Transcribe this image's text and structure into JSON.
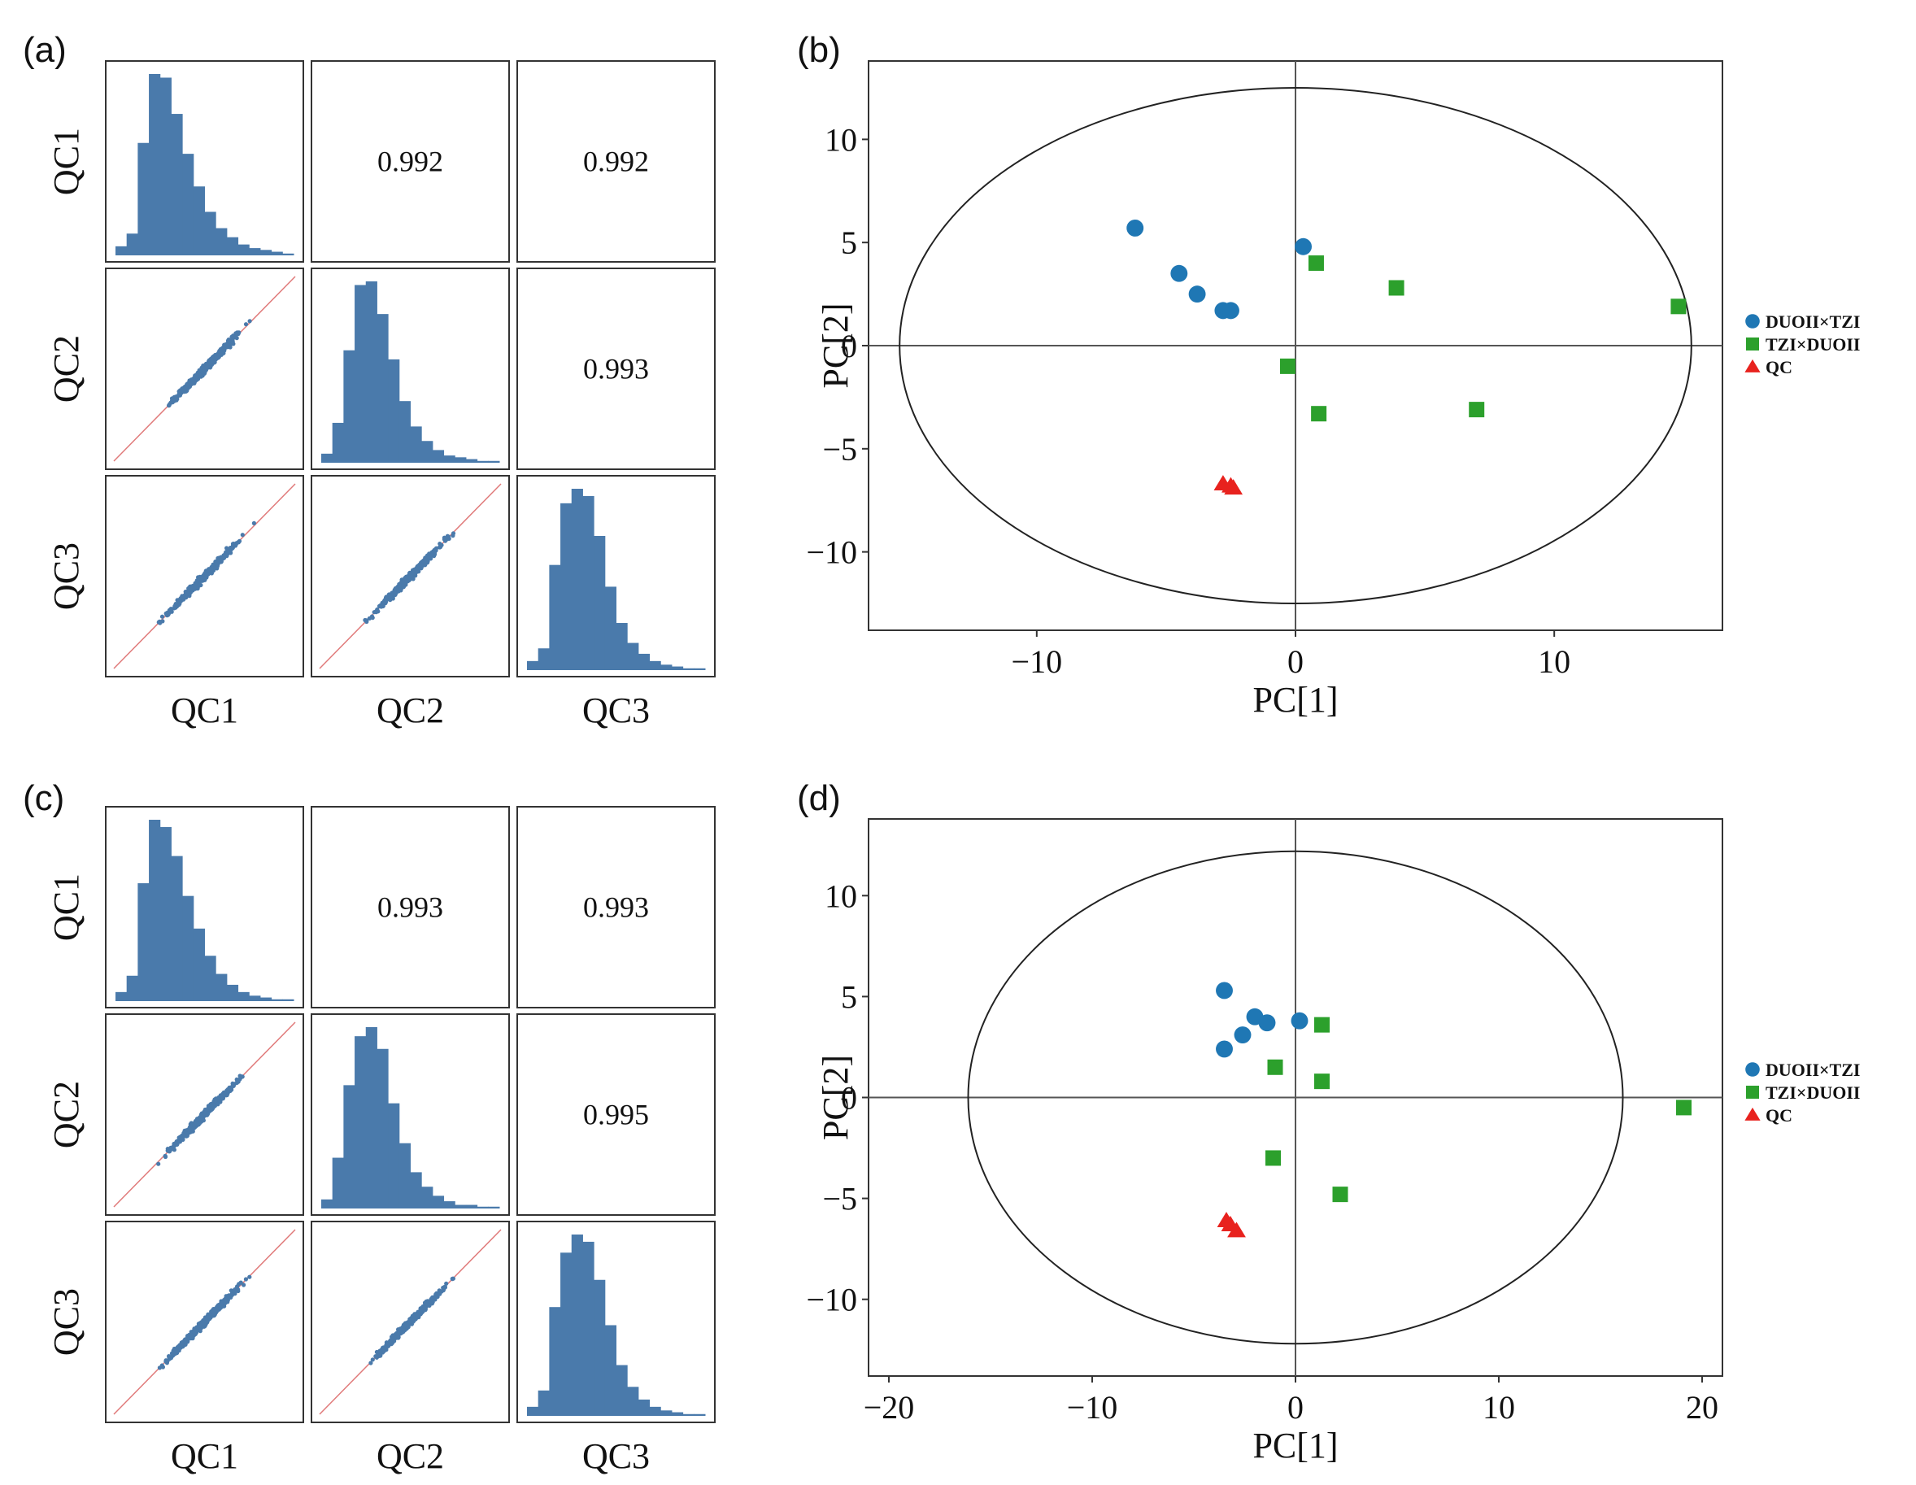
{
  "colors": {
    "hist": "#4a7aab",
    "scatter": "#4a7aab",
    "diag_line": "#e07a7a",
    "duo_tzi": "#1f77b4",
    "tzi_duo": "#2ca02c",
    "qc": "#e8221e",
    "frame": "#333333"
  },
  "chart_data": [
    {
      "id": "a",
      "panel_label": "(a)",
      "type": "pair-matrix",
      "variables": [
        "QC1",
        "QC2",
        "QC3"
      ],
      "correlations": {
        "QC1-QC2": "0.992",
        "QC1-QC3": "0.992",
        "QC2-QC3": "0.993"
      },
      "histograms": {
        "QC1": [
          0.05,
          0.12,
          0.62,
          1.0,
          0.98,
          0.78,
          0.56,
          0.38,
          0.24,
          0.15,
          0.1,
          0.06,
          0.04,
          0.03,
          0.02,
          0.01
        ],
        "QC2": [
          0.05,
          0.22,
          0.62,
          0.98,
          1.0,
          0.82,
          0.57,
          0.34,
          0.2,
          0.12,
          0.07,
          0.04,
          0.03,
          0.02,
          0.01,
          0.01
        ],
        "QC3": [
          0.05,
          0.12,
          0.58,
          0.92,
          1.0,
          0.96,
          0.74,
          0.46,
          0.26,
          0.15,
          0.09,
          0.05,
          0.03,
          0.02,
          0.01,
          0.01
        ]
      }
    },
    {
      "id": "b",
      "panel_label": "(b)",
      "type": "scatter",
      "xlabel": "PC[1]",
      "ylabel": "PC[2]",
      "xlim": [
        -16.5,
        16.5
      ],
      "ylim": [
        -13.8,
        13.8
      ],
      "xticks": [
        -10,
        0,
        10
      ],
      "yticks": [
        10,
        5,
        0,
        -5,
        -10
      ],
      "xtick_labels": [
        "−10",
        "0",
        "10"
      ],
      "ytick_labels": [
        "10",
        "5",
        "0",
        "−5",
        "−10"
      ],
      "ellipse": {
        "rx": 15.3,
        "ry": 12.5
      },
      "legend": [
        "DUOII×TZI",
        "TZI×DUOII",
        "QC"
      ],
      "series": [
        {
          "name": "DUOII×TZI",
          "marker": "circle",
          "points": [
            [
              -6.2,
              5.7
            ],
            [
              -4.5,
              3.5
            ],
            [
              -3.8,
              2.5
            ],
            [
              -2.8,
              1.7
            ],
            [
              -2.5,
              1.7
            ],
            [
              0.3,
              4.8
            ]
          ]
        },
        {
          "name": "TZI×DUOII",
          "marker": "square",
          "points": [
            [
              0.8,
              4.0
            ],
            [
              3.9,
              2.8
            ],
            [
              14.8,
              1.9
            ],
            [
              -0.3,
              -1.0
            ],
            [
              0.9,
              -3.3
            ],
            [
              7.0,
              -3.1
            ]
          ]
        },
        {
          "name": "QC",
          "marker": "triangle",
          "points": [
            [
              -2.8,
              -6.7
            ],
            [
              -2.5,
              -6.8
            ],
            [
              -2.4,
              -6.9
            ]
          ]
        }
      ]
    },
    {
      "id": "c",
      "panel_label": "(c)",
      "type": "pair-matrix",
      "variables": [
        "QC1",
        "QC2",
        "QC3"
      ],
      "correlations": {
        "QC1-QC2": "0.993",
        "QC1-QC3": "0.993",
        "QC2-QC3": "0.995"
      },
      "histograms": {
        "QC1": [
          0.05,
          0.14,
          0.65,
          1.0,
          0.96,
          0.8,
          0.58,
          0.4,
          0.25,
          0.15,
          0.09,
          0.05,
          0.03,
          0.02,
          0.01,
          0.01
        ],
        "QC2": [
          0.05,
          0.28,
          0.68,
          0.95,
          1.0,
          0.88,
          0.58,
          0.36,
          0.2,
          0.12,
          0.07,
          0.04,
          0.02,
          0.02,
          0.01,
          0.01
        ],
        "QC3": [
          0.05,
          0.14,
          0.6,
          0.9,
          1.0,
          0.96,
          0.75,
          0.5,
          0.28,
          0.16,
          0.09,
          0.05,
          0.03,
          0.02,
          0.01,
          0.01
        ]
      }
    },
    {
      "id": "d",
      "panel_label": "(d)",
      "type": "scatter",
      "xlabel": "PC[1]",
      "ylabel": "PC[2]",
      "xlim": [
        -21,
        21
      ],
      "ylim": [
        -13.8,
        13.8
      ],
      "xticks": [
        -20,
        -10,
        0,
        10,
        20
      ],
      "yticks": [
        10,
        5,
        0,
        -5,
        -10
      ],
      "xtick_labels": [
        "−20",
        "−10",
        "0",
        "10",
        "20"
      ],
      "ytick_labels": [
        "10",
        "5",
        "0",
        "−5",
        "−10"
      ],
      "ellipse": {
        "rx": 16.1,
        "ry": 12.2
      },
      "legend": [
        "DUOII×TZI",
        "TZI×DUOII",
        "QC"
      ],
      "series": [
        {
          "name": "DUOII×TZI",
          "marker": "circle",
          "points": [
            [
              -3.5,
              5.3
            ],
            [
              -2.0,
              4.0
            ],
            [
              -1.4,
              3.7
            ],
            [
              0.2,
              3.8
            ],
            [
              -2.6,
              3.1
            ],
            [
              -3.5,
              2.4
            ]
          ]
        },
        {
          "name": "TZI×DUOII",
          "marker": "square",
          "points": [
            [
              1.3,
              3.6
            ],
            [
              -1.0,
              1.5
            ],
            [
              1.3,
              0.8
            ],
            [
              -1.1,
              -3.0
            ],
            [
              2.2,
              -4.8
            ],
            [
              19.1,
              -0.5
            ]
          ]
        },
        {
          "name": "QC",
          "marker": "triangle",
          "points": [
            [
              -3.4,
              -6.1
            ],
            [
              -3.2,
              -6.3
            ],
            [
              -2.9,
              -6.6
            ]
          ]
        }
      ]
    }
  ]
}
